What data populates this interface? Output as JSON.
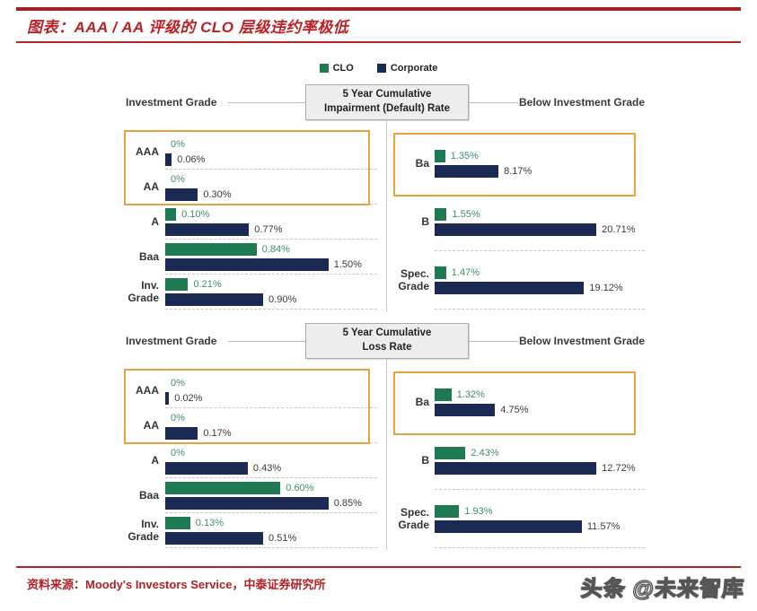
{
  "header": {
    "title": "图表：AAA / AA 评级的 CLO 层级违约率极低"
  },
  "legend": [
    {
      "label": "CLO",
      "color": "#1d7a52"
    },
    {
      "label": "Corporate",
      "color": "#1a2a52"
    }
  ],
  "colors": {
    "clo": "#1d7a52",
    "corporate": "#1a2a52",
    "accent_red": "#b32025",
    "highlight_orange": "#e8a23c",
    "clo_value_text": "#3e8e68",
    "corporate_value_text": "#3a3a3a"
  },
  "footer": {
    "source": "资料来源：Moody's Investors Service，中泰证券研究所",
    "watermark": "头条 @未来智库"
  },
  "chart_data": [
    {
      "type": "bar",
      "orientation": "horizontal",
      "title": "5 Year Cumulative Impairment (Default) Rate",
      "title_line1": "5 Year Cumulative",
      "title_line2": "Impairment (Default) Rate",
      "left_header": "Investment Grade",
      "right_header": "Below Investment Grade",
      "series_names": [
        "CLO",
        "Corporate"
      ],
      "unit": "percent",
      "panels": {
        "left": {
          "max": 1.5,
          "highlight_rows": [
            0,
            1
          ],
          "rows": [
            {
              "category": "AAA",
              "clo": 0,
              "clo_label": "0%",
              "corporate": 0.06,
              "corporate_label": "0.06%"
            },
            {
              "category": "AA",
              "clo": 0,
              "clo_label": "0%",
              "corporate": 0.3,
              "corporate_label": "0.30%"
            },
            {
              "category": "A",
              "clo": 0.1,
              "clo_label": "0.10%",
              "corporate": 0.77,
              "corporate_label": "0.77%"
            },
            {
              "category": "Baa",
              "clo": 0.84,
              "clo_label": "0.84%",
              "corporate": 1.5,
              "corporate_label": "1.50%"
            },
            {
              "category": "Inv. Grade",
              "clo": 0.21,
              "clo_label": "0.21%",
              "corporate": 0.9,
              "corporate_label": "0.90%"
            }
          ]
        },
        "right": {
          "max": 20.71,
          "highlight_rows": [
            0
          ],
          "rows": [
            {
              "category": "Ba",
              "clo": 1.35,
              "clo_label": "1.35%",
              "corporate": 8.17,
              "corporate_label": "8.17%"
            },
            {
              "category": "B",
              "clo": 1.55,
              "clo_label": "1.55%",
              "corporate": 20.71,
              "corporate_label": "20.71%"
            },
            {
              "category": "Spec. Grade",
              "clo": 1.47,
              "clo_label": "1.47%",
              "corporate": 19.12,
              "corporate_label": "19.12%"
            }
          ]
        }
      }
    },
    {
      "type": "bar",
      "orientation": "horizontal",
      "title": "5 Year Cumulative Loss Rate",
      "title_line1": "5 Year Cumulative",
      "title_line2": "Loss Rate",
      "left_header": "Investment Grade",
      "right_header": "Below Investment Grade",
      "series_names": [
        "CLO",
        "Corporate"
      ],
      "unit": "percent",
      "panels": {
        "left": {
          "max": 0.85,
          "highlight_rows": [
            0,
            1
          ],
          "rows": [
            {
              "category": "AAA",
              "clo": 0,
              "clo_label": "0%",
              "corporate": 0.02,
              "corporate_label": "0.02%"
            },
            {
              "category": "AA",
              "clo": 0,
              "clo_label": "0%",
              "corporate": 0.17,
              "corporate_label": "0.17%"
            },
            {
              "category": "A",
              "clo": 0,
              "clo_label": "0%",
              "corporate": 0.43,
              "corporate_label": "0.43%"
            },
            {
              "category": "Baa",
              "clo": 0.6,
              "clo_label": "0.60%",
              "corporate": 0.85,
              "corporate_label": "0.85%"
            },
            {
              "category": "Inv. Grade",
              "clo": 0.13,
              "clo_label": "0.13%",
              "corporate": 0.51,
              "corporate_label": "0.51%"
            }
          ]
        },
        "right": {
          "max": 12.72,
          "highlight_rows": [
            0
          ],
          "rows": [
            {
              "category": "Ba",
              "clo": 1.32,
              "clo_label": "1.32%",
              "corporate": 4.75,
              "corporate_label": "4.75%"
            },
            {
              "category": "B",
              "clo": 2.43,
              "clo_label": "2.43%",
              "corporate": 12.72,
              "corporate_label": "12.72%"
            },
            {
              "category": "Spec. Grade",
              "clo": 1.93,
              "clo_label": "1.93%",
              "corporate": 11.57,
              "corporate_label": "11.57%"
            }
          ]
        }
      }
    }
  ]
}
